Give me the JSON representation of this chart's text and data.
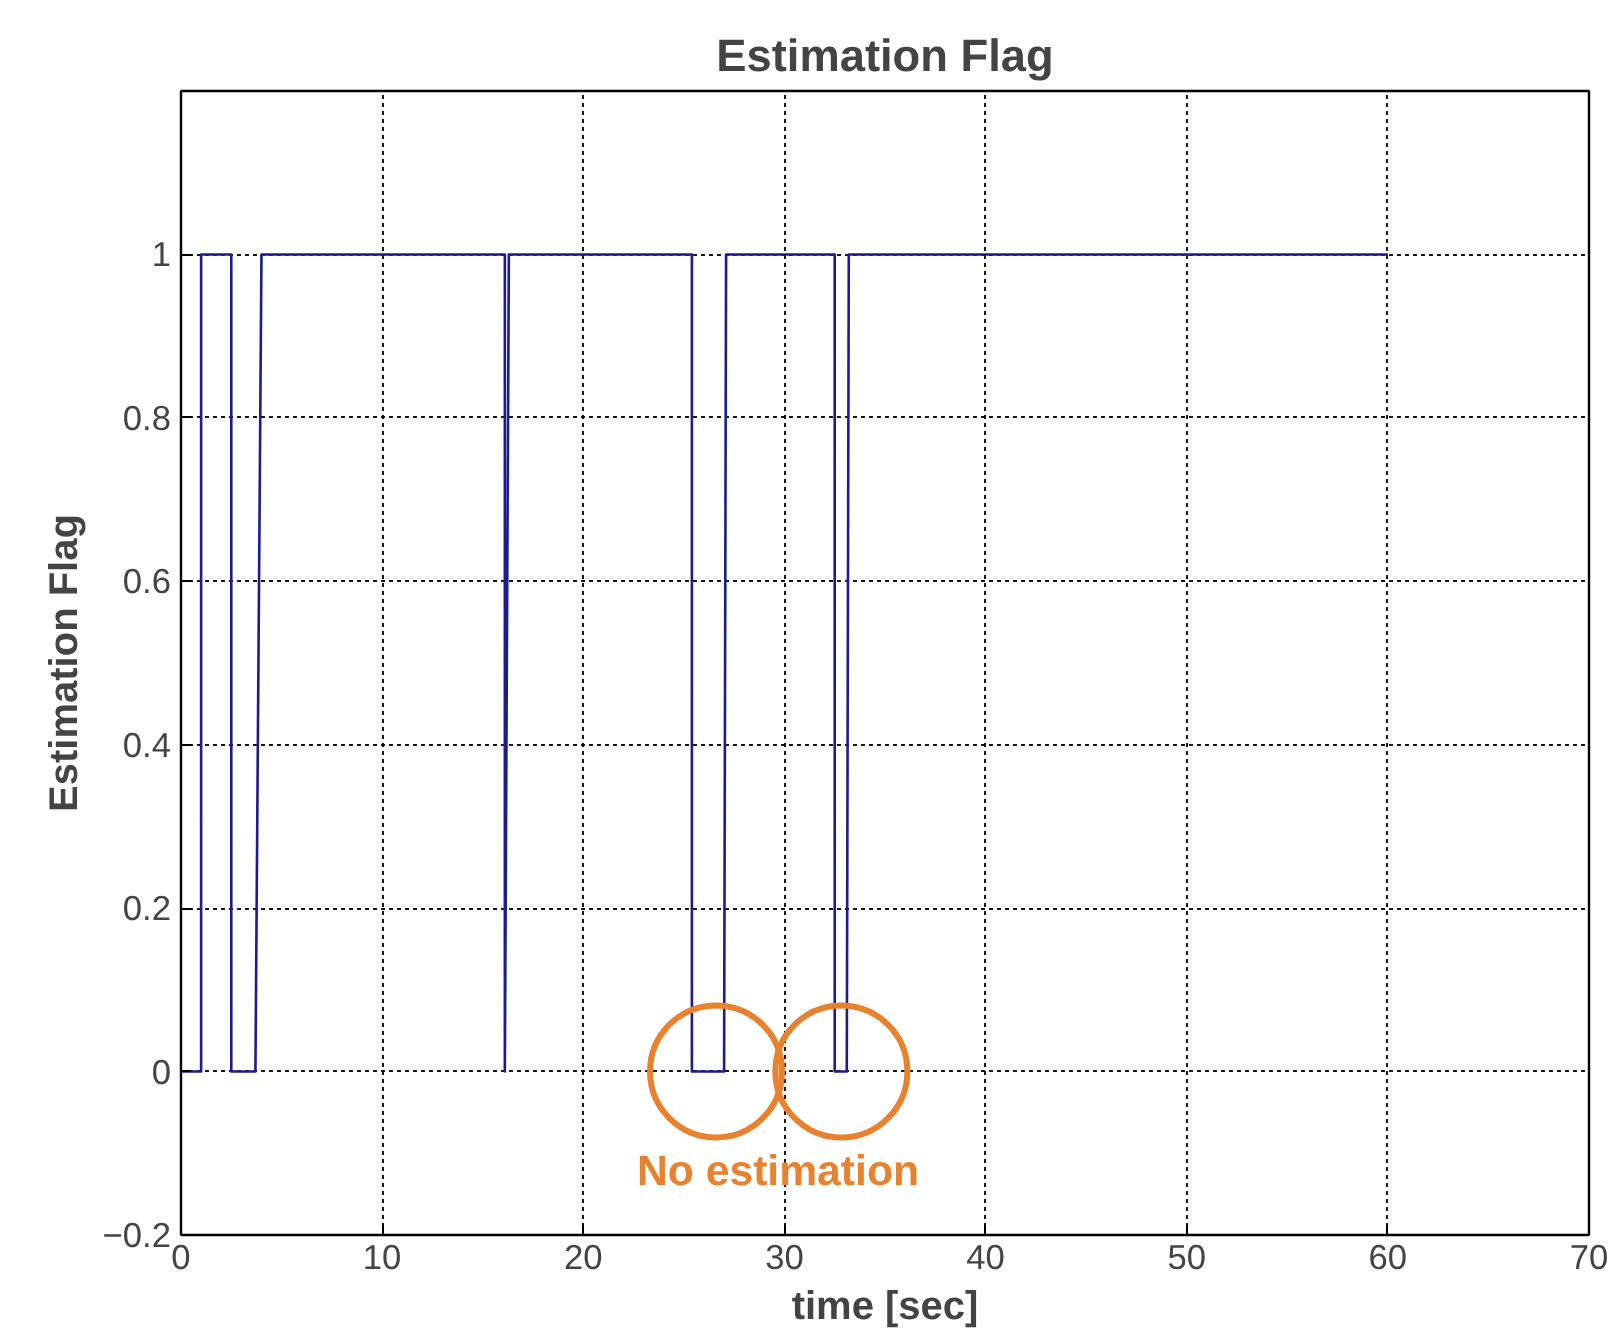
{
  "chart_data": {
    "type": "line",
    "title": "Estimation Flag",
    "xlabel": "time [sec]",
    "ylabel": "Estimation Flag",
    "x": [
      0,
      1.0,
      1.0,
      2.5,
      2.5,
      3.7,
      4.0,
      16.1,
      16.1,
      16.3,
      25.4,
      25.4,
      27.0,
      27.1,
      32.5,
      32.5,
      33.1,
      33.2,
      60
    ],
    "series": [
      {
        "color": "#1c1c8c",
        "values": [
          0,
          0,
          1,
          1,
          0,
          0,
          1,
          1,
          0,
          1,
          1,
          0,
          0,
          1,
          1,
          0,
          0,
          1,
          1
        ]
      }
    ],
    "xlim": [
      0,
      70
    ],
    "ylim": [
      -0.2,
      1.2
    ],
    "xticks": [
      0,
      10,
      20,
      30,
      40,
      50,
      60,
      70
    ],
    "yticks": [
      -0.2,
      0,
      0.2,
      0.4,
      0.6,
      0.8,
      1,
      {
        "value": 1.2,
        "label": null
      }
    ],
    "grid": true,
    "line_style": "solid",
    "marker": "none",
    "annotations": [
      "No estimation"
    ]
  }
}
